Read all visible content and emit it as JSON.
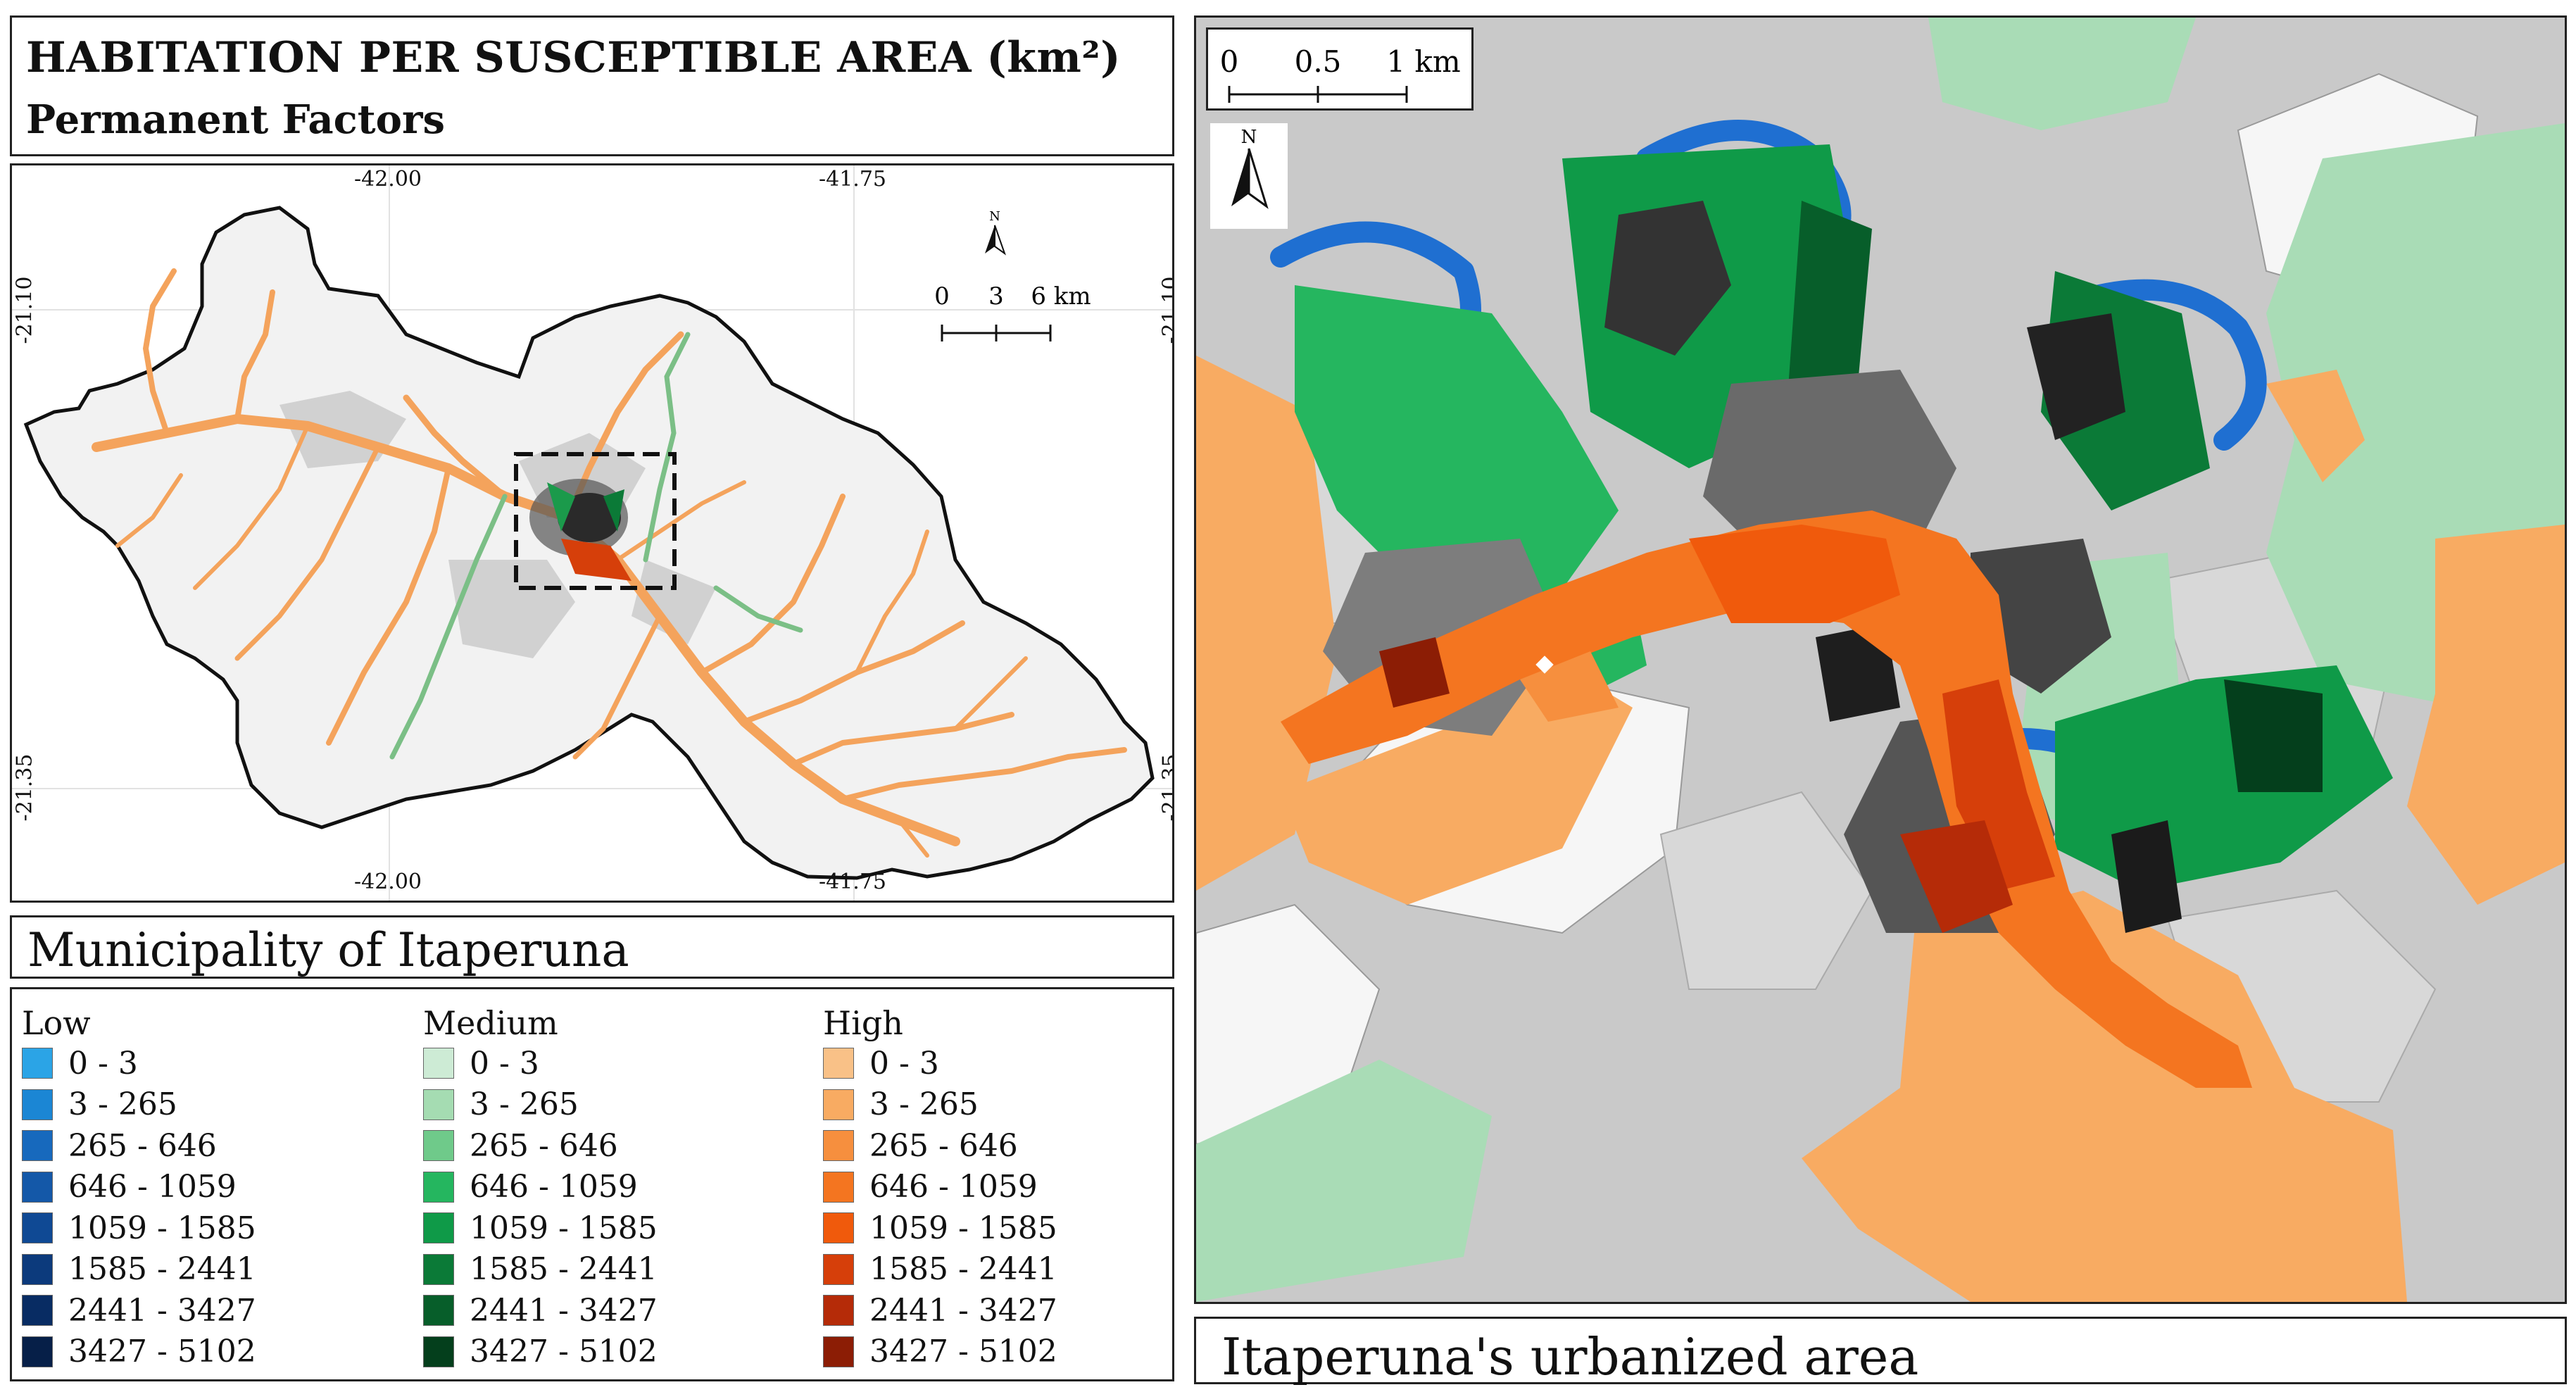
{
  "title": {
    "main": "HABITATION PER SUSCEPTIBLE AREA (km²)",
    "sub": "Permanent Factors"
  },
  "overview": {
    "coords_top": [
      "-42.00",
      "-41.75"
    ],
    "coords_bottom": [
      "-42.00",
      "-41.75"
    ],
    "coords_left": [
      "-21.10",
      "-21.35"
    ],
    "coords_right": [
      "-21.10",
      "-21.35"
    ],
    "north_label": "N",
    "scale_labels": [
      "0",
      "3",
      "6 km"
    ]
  },
  "muni_label": "Municipality of Itaperuna",
  "legend": {
    "groups": [
      {
        "name": "Low",
        "colors": [
          "#2ba4e6",
          "#1b86d4",
          "#1769bd",
          "#1458a8",
          "#0f4994",
          "#0c3a7c",
          "#082c63",
          "#061f48"
        ],
        "labels": [
          "0 - 3",
          "3 - 265",
          "265 - 646",
          "646 - 1059",
          "1059 - 1585",
          "1585 - 2441",
          "2441 - 3427",
          "3427 - 5102"
        ]
      },
      {
        "name": "Medium",
        "colors": [
          "#cdebd5",
          "#a5dcb2",
          "#6fca8a",
          "#25b65f",
          "#0f9a48",
          "#0b7a37",
          "#075e2a",
          "#043f1c"
        ],
        "labels": [
          "0 - 3",
          "3 - 265",
          "265 - 646",
          "646 - 1059",
          "1059 - 1585",
          "1585 - 2441",
          "2441 - 3427",
          "3427 - 5102"
        ]
      },
      {
        "name": "High",
        "colors": [
          "#f9c187",
          "#f8ab62",
          "#f68f3e",
          "#f47520",
          "#f05a0c",
          "#d63f0a",
          "#b52b08",
          "#8c1d05"
        ],
        "labels": [
          "0 - 3",
          "3 - 265",
          "265 - 646",
          "646 - 1059",
          "1059 - 1585",
          "1585 - 2441",
          "2441 - 3427",
          "3427 - 5102"
        ]
      }
    ]
  },
  "detail": {
    "scale_labels": [
      "0",
      "0.5",
      "1 km"
    ],
    "north_label": "N",
    "caption": "Itaperuna's urbanized area"
  },
  "colors": {
    "orange": "#f6a05a",
    "green": "#1b9a4b",
    "blue": "#1f6fd1",
    "gray": "#c8c8c8"
  }
}
